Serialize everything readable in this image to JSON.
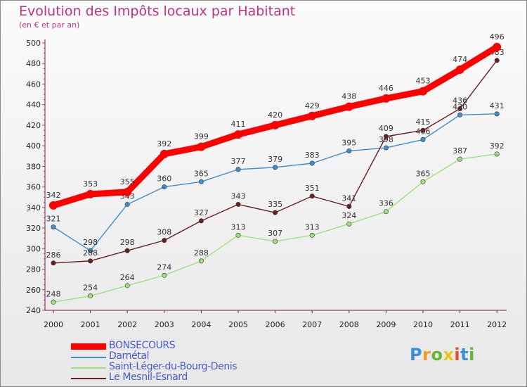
{
  "header": {
    "title": "Evolution des Impôts locaux par Habitant",
    "subtitle": "(en € et par an)"
  },
  "brand": {
    "logo_text": "Proxiti"
  },
  "colors": {
    "title": "#c0337a",
    "axis": "#7a1a4a",
    "legend_text": "#4a5cc8"
  },
  "chart_data": {
    "type": "line",
    "title": "Evolution des Impôts locaux par Habitant",
    "subtitle": "(en € et par an)",
    "xlabel": "",
    "ylabel": "",
    "x": [
      "2000",
      "2001",
      "2002",
      "2003",
      "2004",
      "2005",
      "2006",
      "2007",
      "2008",
      "2009",
      "2010",
      "2011",
      "2012"
    ],
    "y_ticks": [
      240,
      260,
      280,
      300,
      320,
      340,
      360,
      380,
      400,
      420,
      440,
      460,
      480,
      500
    ],
    "ylim": [
      240,
      500
    ],
    "grid": false,
    "legend_position": "bottom-left",
    "series": [
      {
        "name": "BONSECOURS",
        "color": "#ff0000",
        "values": [
          342,
          353,
          355,
          392,
          399,
          411,
          420,
          429,
          438,
          446,
          453,
          474,
          496
        ]
      },
      {
        "name": "Darnétal",
        "color": "#3e8ed0",
        "values": [
          321,
          298,
          343,
          360,
          365,
          377,
          379,
          383,
          395,
          398,
          406,
          430,
          431
        ]
      },
      {
        "name": "Saint-Léger-du-Bourg-Denis",
        "color": "#9de27a",
        "values": [
          248,
          254,
          264,
          274,
          288,
          313,
          307,
          313,
          324,
          336,
          365,
          387,
          392
        ]
      },
      {
        "name": "Le Mesnil-Esnard",
        "color": "#6a1f1f",
        "values": [
          286,
          288,
          298,
          308,
          327,
          343,
          335,
          351,
          341,
          409,
          415,
          436,
          483
        ]
      }
    ]
  }
}
